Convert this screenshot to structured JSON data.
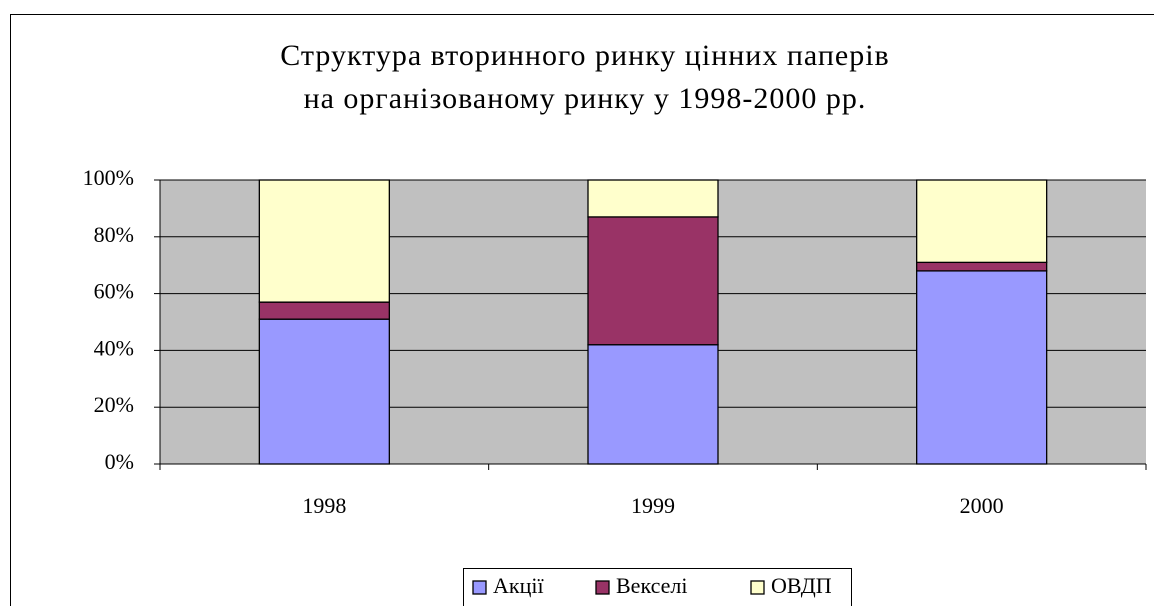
{
  "chart_data": {
    "type": "stacked_bar",
    "title": [
      "Структура вторинного ринку цінних паперів",
      "на організованому ринку у 1998-2000 рр."
    ],
    "categories": [
      "1998",
      "1999",
      "2000"
    ],
    "series": [
      {
        "name": "Акції",
        "color": "#9999ff",
        "values": [
          51,
          42,
          68
        ]
      },
      {
        "name": "Векселі",
        "color": "#993366",
        "values": [
          6,
          45,
          3
        ]
      },
      {
        "name": "ОВДП",
        "color": "#ffffcc",
        "values": [
          43,
          13,
          29
        ]
      }
    ],
    "ylim": [
      0,
      100
    ],
    "yticks": [
      {
        "value": 0,
        "label": "0%"
      },
      {
        "value": 20,
        "label": "20%"
      },
      {
        "value": 40,
        "label": "40%"
      },
      {
        "value": 60,
        "label": "60%"
      },
      {
        "value": 80,
        "label": "80%"
      },
      {
        "value": 100,
        "label": "100%"
      }
    ],
    "grid": true,
    "legend": "bottom",
    "plot_background": "#c0c0c0"
  }
}
